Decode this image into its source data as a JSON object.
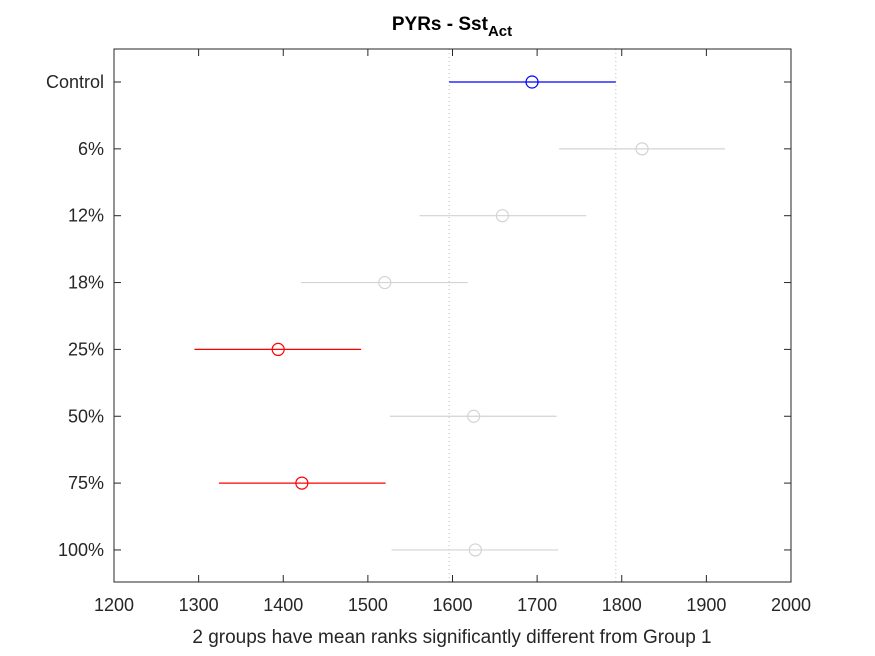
{
  "chart_data": {
    "type": "scatter",
    "title": "PYRs - Sst",
    "title_subscript": "Act",
    "xlabel": "2 groups have mean ranks significantly different from Group 1",
    "ylabel": "",
    "xlim": [
      1200,
      2000
    ],
    "xticks": [
      1200,
      1300,
      1400,
      1500,
      1600,
      1700,
      1800,
      1900,
      2000
    ],
    "grid": false,
    "reference_lines_x": [
      1596,
      1793
    ],
    "colors": {
      "selected": "#0000ff",
      "significant": "#ff0000",
      "neutral": "#d3d3d3"
    },
    "groups": [
      {
        "label": "Control",
        "mean": 1694,
        "lower": 1596,
        "upper": 1793,
        "status": "selected"
      },
      {
        "label": "6%",
        "mean": 1824,
        "lower": 1726,
        "upper": 1922,
        "status": "neutral"
      },
      {
        "label": "12%",
        "mean": 1659,
        "lower": 1561,
        "upper": 1758,
        "status": "neutral"
      },
      {
        "label": "18%",
        "mean": 1520,
        "lower": 1421,
        "upper": 1618,
        "status": "neutral"
      },
      {
        "label": "25%",
        "mean": 1394,
        "lower": 1295,
        "upper": 1492,
        "status": "significant"
      },
      {
        "label": "50%",
        "mean": 1625,
        "lower": 1526,
        "upper": 1723,
        "status": "neutral"
      },
      {
        "label": "75%",
        "mean": 1422,
        "lower": 1324,
        "upper": 1521,
        "status": "significant"
      },
      {
        "label": "100%",
        "mean": 1627,
        "lower": 1528,
        "upper": 1725,
        "status": "neutral"
      }
    ]
  }
}
